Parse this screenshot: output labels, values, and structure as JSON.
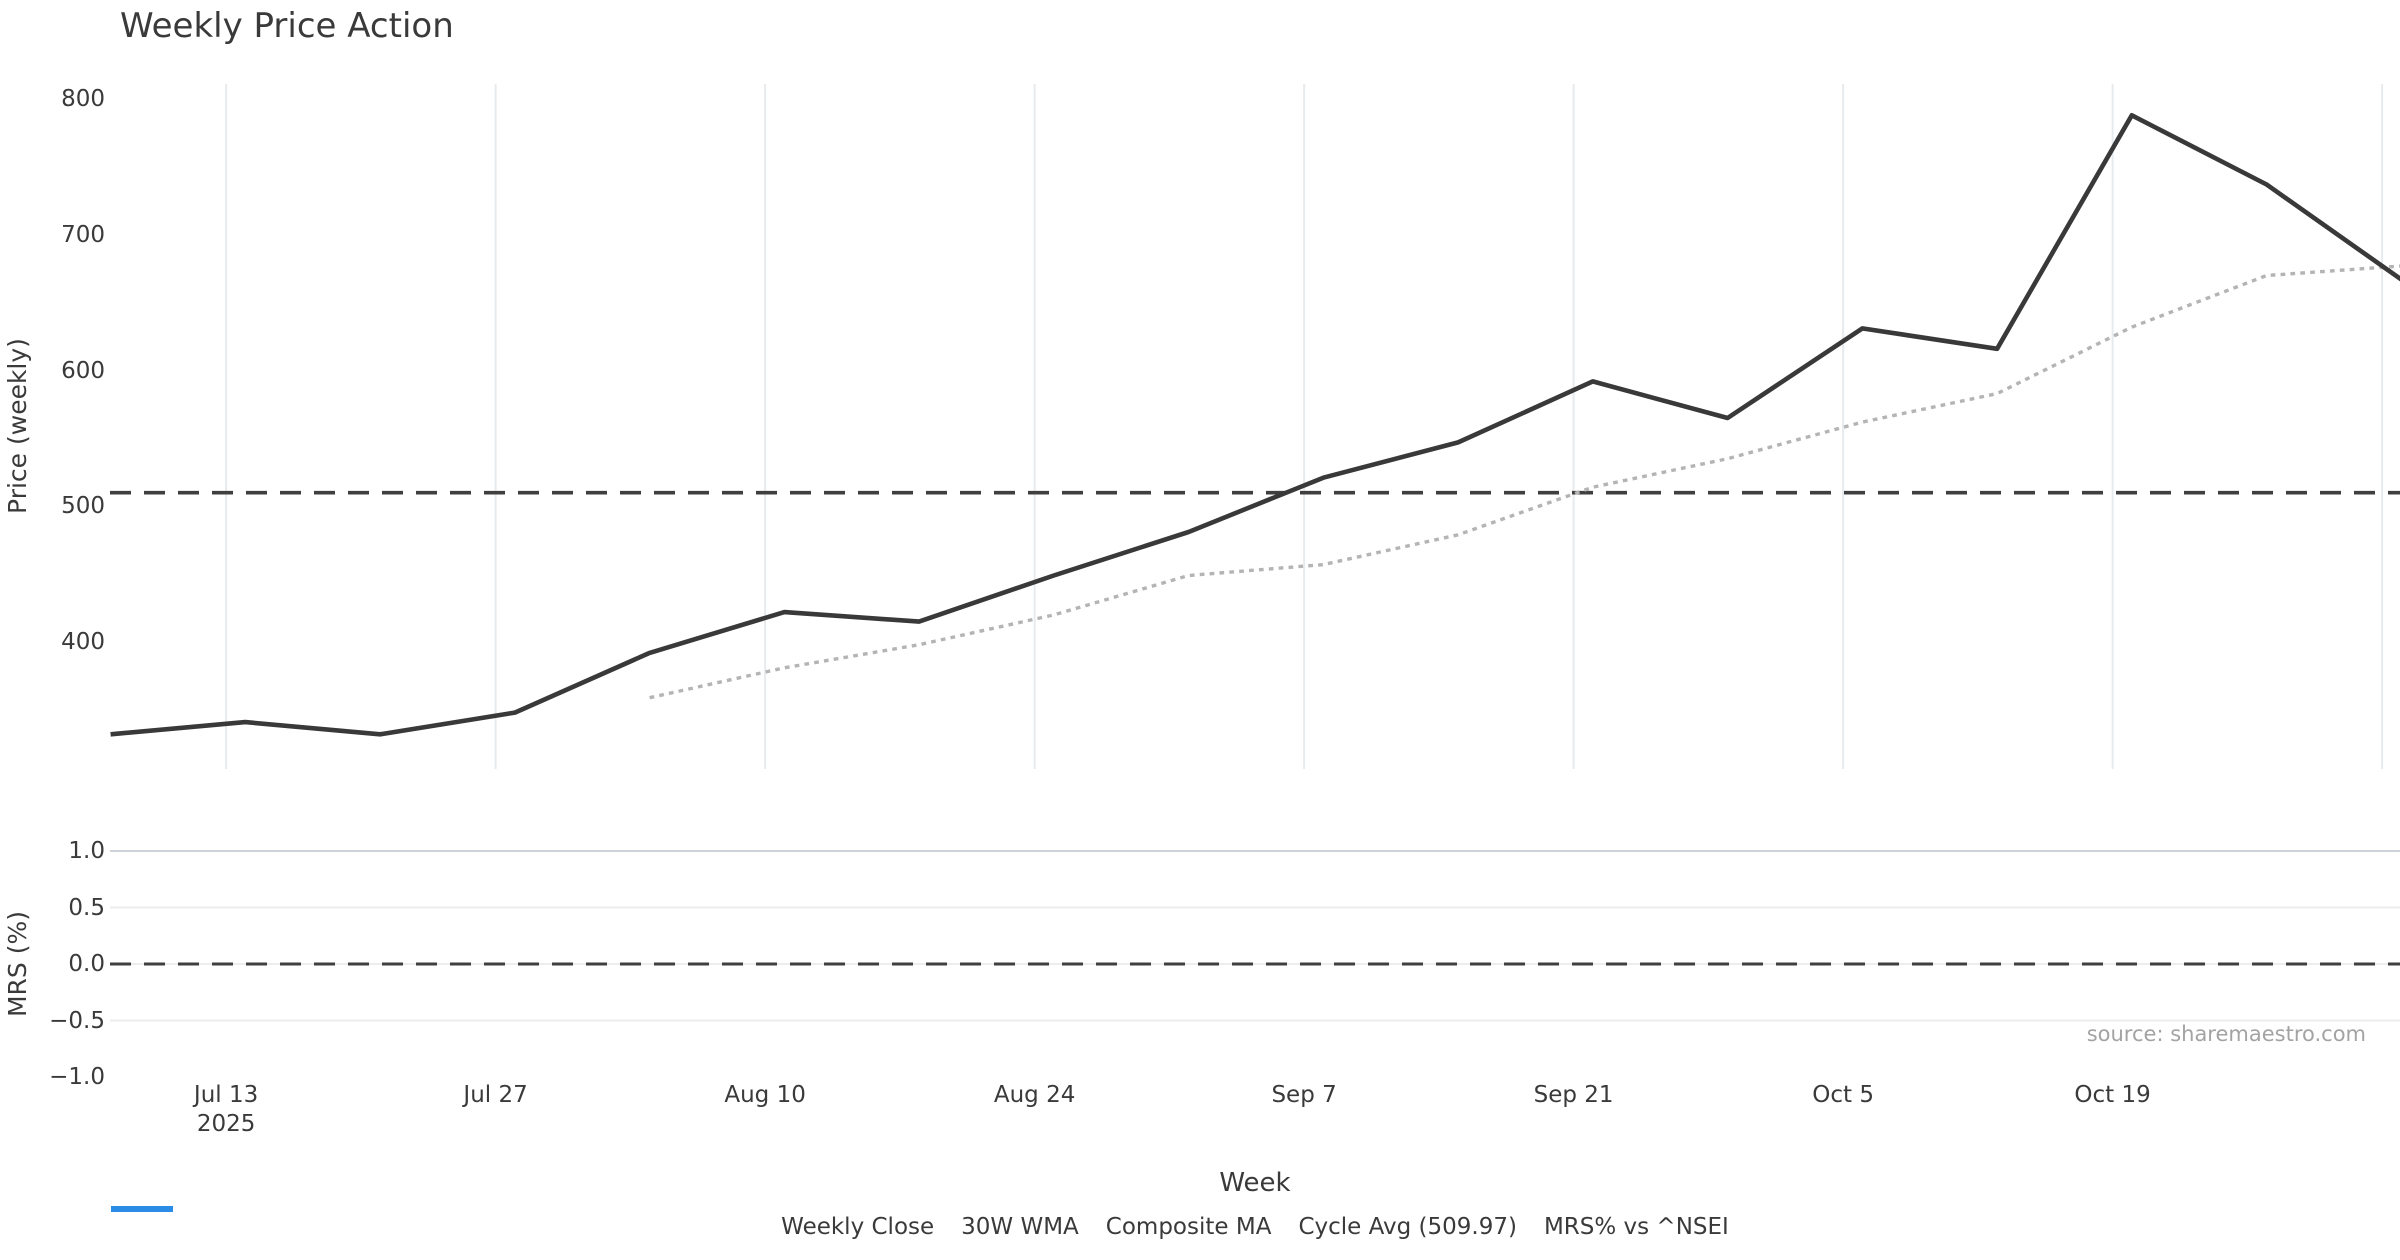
{
  "title": "Weekly Price Action",
  "source": "source: sharemaestro.com",
  "price_axis": {
    "label": "Price (weekly)",
    "ticks": [
      "800",
      "700",
      "600",
      "500",
      "400"
    ]
  },
  "mrs_axis": {
    "label": "MRS (%)",
    "ticks": [
      "1.0",
      "0.5",
      "0.0",
      "−0.5",
      "−1.0"
    ]
  },
  "x_axis": {
    "label": "Week",
    "ticks": [
      "Jul 13",
      "Jul 27",
      "Aug 10",
      "Aug 24",
      "Sep 7",
      "Sep 21",
      "Oct 5",
      "Oct 19"
    ],
    "first_tick_year": "2025"
  },
  "legend": [
    {
      "label": "Weekly Close",
      "color": "#393939",
      "style": "solid"
    },
    {
      "label": "30W WMA",
      "color": "#d4a118",
      "style": "solid"
    },
    {
      "label": "Composite MA",
      "color": "#b4b4b4",
      "style": "dotted"
    },
    {
      "label": "Cycle Avg (509.97)",
      "color": "#3f3f3f",
      "style": "dashed"
    },
    {
      "label": "MRS% vs ^NSEI",
      "color": "#2b8ce8",
      "style": "solid"
    }
  ],
  "chart_data": {
    "type": "line",
    "title": "Weekly Price Action",
    "xlabel": "Week",
    "ylabel": "Price (weekly)",
    "x": [
      "Jul 7",
      "Jul 14",
      "Jul 21",
      "Jul 28",
      "Aug 4",
      "Aug 11",
      "Aug 18",
      "Aug 25",
      "Sep 1",
      "Sep 8",
      "Sep 15",
      "Sep 22",
      "Sep 29",
      "Oct 6",
      "Oct 13",
      "Oct 20",
      "Oct 27",
      "Nov 3"
    ],
    "x_year": "2025",
    "series": [
      {
        "name": "Weekly Close",
        "color": "#393939",
        "style": "solid",
        "values": [
          332,
          341,
          332,
          348,
          392,
          422,
          415,
          449,
          481,
          521,
          547,
          592,
          565,
          631,
          616,
          788,
          737,
          667
        ]
      },
      {
        "name": "30W WMA",
        "color": "#d4a118",
        "style": "solid",
        "values": []
      },
      {
        "name": "Composite MA",
        "color": "#b4b4b4",
        "style": "dotted",
        "values": [
          null,
          null,
          null,
          null,
          359,
          381,
          398,
          420,
          449,
          457,
          479,
          514,
          535,
          562,
          583,
          632,
          670,
          677
        ]
      },
      {
        "name": "Cycle Avg (509.97)",
        "color": "#3f3f3f",
        "style": "dashed",
        "cycle_avg": 509.97
      },
      {
        "name": "MRS% vs ^NSEI",
        "color": "#2b8ce8",
        "style": "solid",
        "values": []
      }
    ],
    "price_yticks": [
      800,
      700,
      600,
      500,
      400
    ],
    "price_ylim": [
      310,
      811
    ],
    "mrs_yticks": [
      1.0,
      0.5,
      0.0,
      -0.5,
      -1.0
    ],
    "mrs_ylim": [
      -1.0,
      1.0
    ],
    "mrs_zero_dashed_line": 0.0,
    "grid": "vertical gridlines on price panel, horizontal gridlines on MRS panel",
    "legend_position": "bottom center"
  }
}
